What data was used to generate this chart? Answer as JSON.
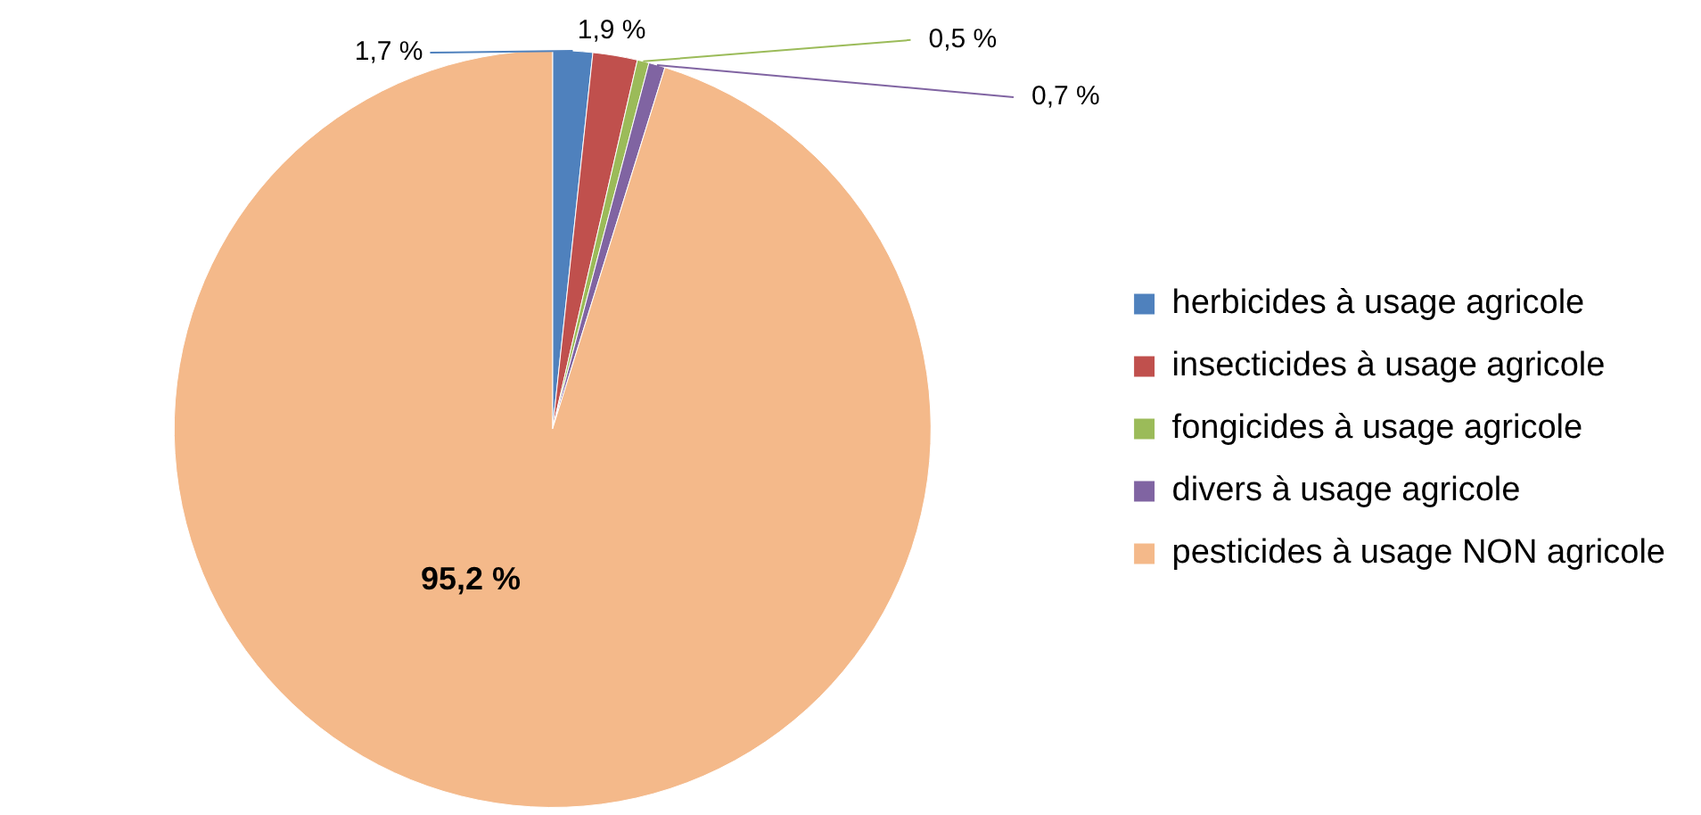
{
  "chart_data": {
    "type": "pie",
    "categories": [
      "herbicides à usage agricole",
      "insecticides à usage agricole",
      "fongicides à usage agricole",
      "divers à usage agricole",
      "pesticides à usage NON agricole"
    ],
    "values": [
      1.7,
      1.9,
      0.5,
      0.7,
      95.2
    ],
    "colors": [
      "#4f81bd",
      "#c0504d",
      "#9bbb59",
      "#8064a2",
      "#f4b98a"
    ],
    "value_labels": [
      "1,7 %",
      "1,9 %",
      "0,5 %",
      "0,7 %",
      "95,2 %"
    ],
    "legend": "right"
  }
}
